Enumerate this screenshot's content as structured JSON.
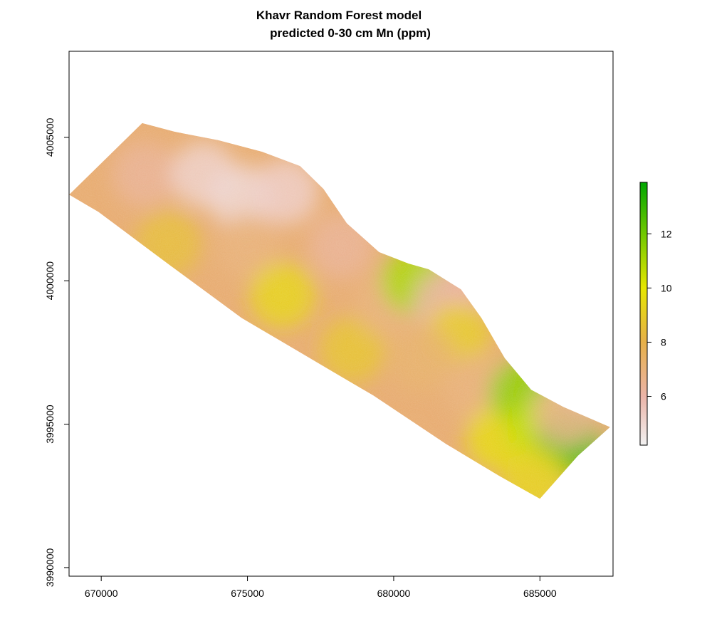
{
  "title": {
    "line1": "Khavr Random Forest model",
    "line2": "predicted 0-30 cm Mn (ppm)"
  },
  "map_data": {
    "type": "raster",
    "variable": "Mn (ppm)",
    "x_range": [
      668900,
      687500
    ],
    "y_range": [
      3989700,
      4008000
    ],
    "x_ticks": [
      {
        "value": 670000,
        "label": "670000"
      },
      {
        "value": 675000,
        "label": "675000"
      },
      {
        "value": 680000,
        "label": "680000"
      },
      {
        "value": 685000,
        "label": "685000"
      }
    ],
    "y_ticks": [
      {
        "value": 4005000,
        "label": "4005000"
      },
      {
        "value": 4000000,
        "label": "4000000"
      },
      {
        "value": 3995000,
        "label": "3995000"
      },
      {
        "value": 3990000,
        "label": "3990000"
      }
    ],
    "study_area_outline": [
      [
        668900,
        4003000
      ],
      [
        671400,
        4005500
      ],
      [
        672500,
        4005200
      ],
      [
        674000,
        4004900
      ],
      [
        675500,
        4004500
      ],
      [
        676800,
        4004000
      ],
      [
        677600,
        4003200
      ],
      [
        678400,
        4002000
      ],
      [
        679500,
        4001000
      ],
      [
        680500,
        4000600
      ],
      [
        681200,
        4000400
      ],
      [
        682300,
        3999700
      ],
      [
        683000,
        3998700
      ],
      [
        683800,
        3997300
      ],
      [
        684700,
        3996200
      ],
      [
        685800,
        3995600
      ],
      [
        687400,
        3994900
      ],
      [
        686300,
        3993900
      ],
      [
        685000,
        3992400
      ],
      [
        683600,
        3993200
      ],
      [
        681800,
        3994300
      ],
      [
        679300,
        3996000
      ],
      [
        676800,
        3997500
      ],
      [
        674800,
        3998700
      ],
      [
        672400,
        4000500
      ],
      [
        669900,
        4002400
      ]
    ],
    "zones": [
      {
        "x": 671500,
        "y": 4003700,
        "value": 6.4
      },
      {
        "x": 673500,
        "y": 4003700,
        "value": 5.2
      },
      {
        "x": 674800,
        "y": 4002900,
        "value": 5.0
      },
      {
        "x": 676300,
        "y": 4003100,
        "value": 5.3
      },
      {
        "x": 672300,
        "y": 4001300,
        "value": 8.5
      },
      {
        "x": 675000,
        "y": 4001200,
        "value": 7.0
      },
      {
        "x": 676200,
        "y": 3999500,
        "value": 9.3
      },
      {
        "x": 678600,
        "y": 3997600,
        "value": 8.7
      },
      {
        "x": 678200,
        "y": 4001200,
        "value": 6.4
      },
      {
        "x": 679800,
        "y": 3999200,
        "value": 7.0
      },
      {
        "x": 680700,
        "y": 4000000,
        "value": 11.0
      },
      {
        "x": 681800,
        "y": 3999200,
        "value": 6.0
      },
      {
        "x": 682200,
        "y": 3998100,
        "value": 9.0
      },
      {
        "x": 681000,
        "y": 3997300,
        "value": 7.3
      },
      {
        "x": 682800,
        "y": 3996300,
        "value": 7.0
      },
      {
        "x": 683600,
        "y": 3994500,
        "value": 9.5
      },
      {
        "x": 684400,
        "y": 3996100,
        "value": 11.5
      },
      {
        "x": 685000,
        "y": 3994800,
        "value": 10.6
      },
      {
        "x": 686000,
        "y": 3994300,
        "value": 12.6
      },
      {
        "x": 684800,
        "y": 3993100,
        "value": 9.3
      },
      {
        "x": 685900,
        "y": 3995400,
        "value": 6.6
      }
    ],
    "legend": {
      "min": 4.2,
      "max": 13.9,
      "ticks": [
        {
          "value": 6,
          "label": "6"
        },
        {
          "value": 8,
          "label": "8"
        },
        {
          "value": 10,
          "label": "10"
        },
        {
          "value": 12,
          "label": "12"
        }
      ],
      "color_stops": [
        {
          "v": 4.2,
          "color": "#f2f2f2"
        },
        {
          "v": 6.0,
          "color": "#ebb4a8"
        },
        {
          "v": 8.0,
          "color": "#e6b04a"
        },
        {
          "v": 10.0,
          "color": "#e6e600"
        },
        {
          "v": 12.0,
          "color": "#70c800"
        },
        {
          "v": 13.9,
          "color": "#00a600"
        }
      ]
    }
  }
}
